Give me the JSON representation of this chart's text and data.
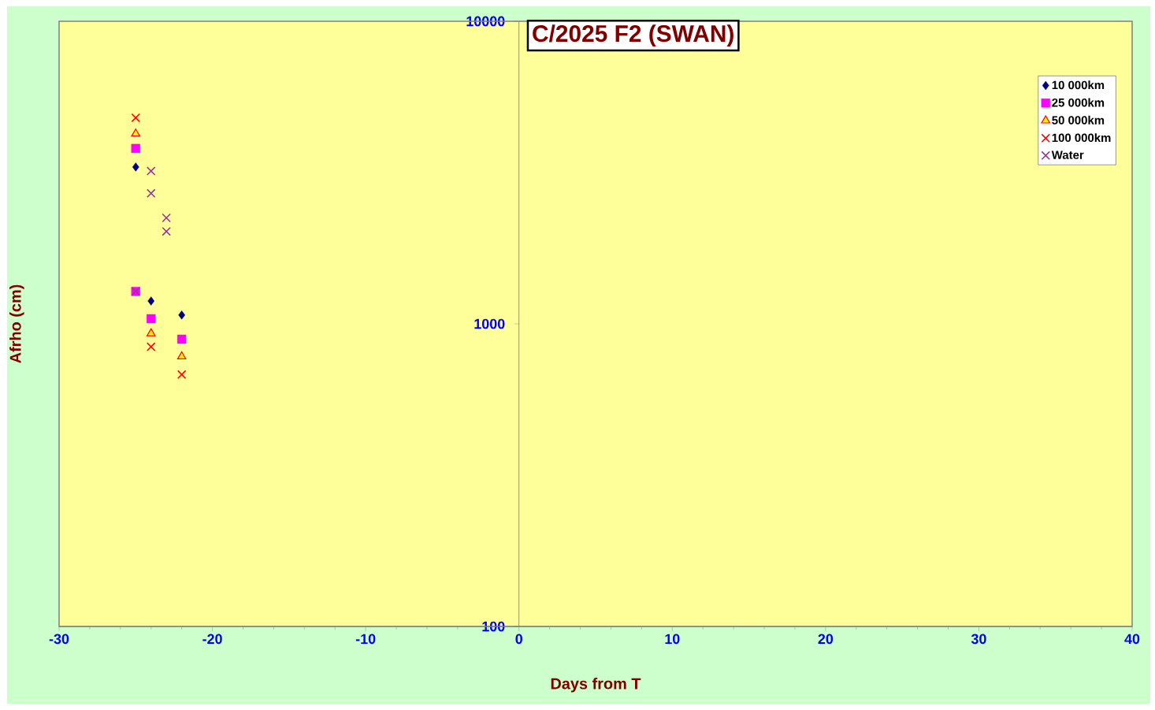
{
  "chart_data": {
    "type": "scatter",
    "title": "C/2025 F2 (SWAN)",
    "xlabel": "Days from T",
    "ylabel": "Afrho (cm)",
    "series": [
      {
        "name": "10 000km",
        "color": "#000080",
        "marker": "diamond",
        "x": [
          -25,
          -24,
          -22
        ],
        "values": [
          3300,
          1190,
          1070
        ]
      },
      {
        "name": "25 000km",
        "color": "#ff00ff",
        "marker": "square",
        "x": [
          -25,
          -25,
          -24,
          -22
        ],
        "values": [
          3800,
          1280,
          1040,
          890
        ]
      },
      {
        "name": "50 000km",
        "color": "#ff0000",
        "marker": "triangle",
        "x": [
          -25,
          -24,
          -22
        ],
        "values": [
          4250,
          930,
          780
        ]
      },
      {
        "name": "100 000km",
        "color": "#ff0000",
        "marker": "cross",
        "x": [
          -25,
          -24,
          -22
        ],
        "values": [
          4800,
          840,
          680
        ]
      },
      {
        "name": "Water",
        "color": "#993399",
        "marker": "cross",
        "x": [
          -25,
          -24,
          -24,
          -23,
          -23
        ],
        "values": [
          1280,
          3200,
          2700,
          2240,
          2020
        ]
      }
    ],
    "xlim": [
      -30,
      40
    ],
    "ylim": [
      100,
      10000
    ],
    "xticks": [
      -30,
      -20,
      -10,
      0,
      10,
      20,
      30,
      40
    ],
    "yticks": [
      100,
      1000,
      10000
    ],
    "log": "y",
    "legend": "top right"
  }
}
